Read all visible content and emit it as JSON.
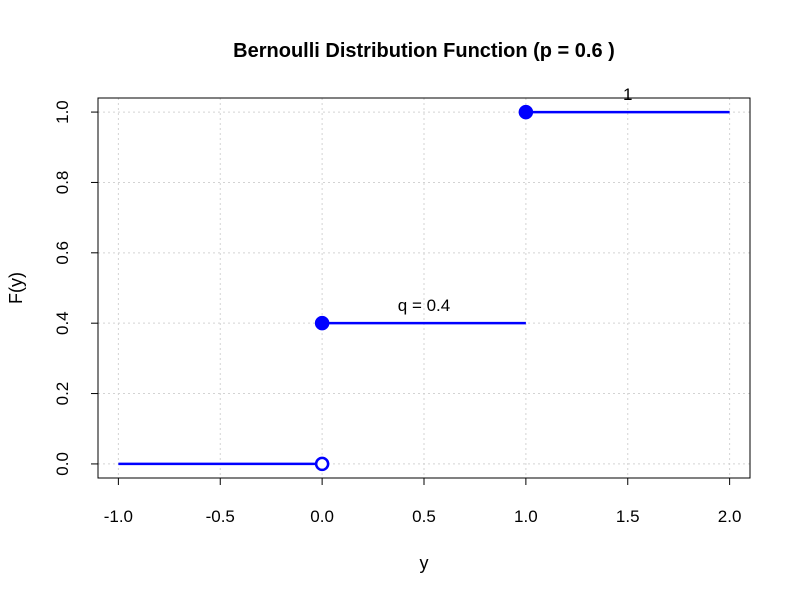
{
  "chart_data": {
    "type": "line",
    "title": "Bernoulli Distribution Function (p = 0.6 )",
    "xlabel": "y",
    "ylabel": "F(y)",
    "xlim": [
      -1.1,
      2.1
    ],
    "ylim": [
      -0.04,
      1.04
    ],
    "xticks": [
      -1.0,
      -0.5,
      0.0,
      0.5,
      1.0,
      1.5,
      2.0
    ],
    "xtick_labels": [
      "-1.0",
      "-0.5",
      "0.0",
      "0.5",
      "1.0",
      "1.5",
      "2.0"
    ],
    "yticks": [
      0.0,
      0.2,
      0.4,
      0.6,
      0.8,
      1.0
    ],
    "ytick_labels": [
      "0.0",
      "0.2",
      "0.4",
      "0.6",
      "0.8",
      "1.0"
    ],
    "grid": true,
    "line_color": "#0000ff",
    "point_color": "#0000ff",
    "segments": [
      {
        "x": [
          -1.0,
          0.0
        ],
        "y": 0.0
      },
      {
        "x": [
          0.0,
          1.0
        ],
        "y": 0.4
      },
      {
        "x": [
          1.0,
          2.0
        ],
        "y": 1.0
      }
    ],
    "points": [
      {
        "x": 0.0,
        "y": 0.0,
        "filled": false
      },
      {
        "x": 0.0,
        "y": 0.4,
        "filled": true
      },
      {
        "x": 1.0,
        "y": 1.0,
        "filled": true
      }
    ],
    "annotations": [
      {
        "x": 0.5,
        "y": 0.4,
        "text": "q = 0.4"
      },
      {
        "x": 1.5,
        "y": 1.0,
        "text": "1"
      }
    ]
  }
}
